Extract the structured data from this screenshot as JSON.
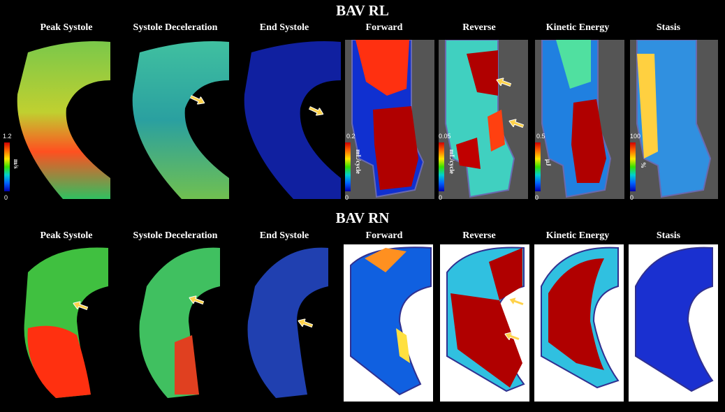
{
  "rows": [
    {
      "title": "BAV RL",
      "panels": [
        {
          "label": "Peak Systole",
          "colorbar": {
            "max": "1.2",
            "min": "0",
            "unit": "m/s"
          }
        },
        {
          "label": "Systole Deceleration"
        },
        {
          "label": "End Systole"
        },
        {
          "label": "Forward",
          "colorbar": {
            "max": "0.2",
            "min": "0",
            "unit": "mL/cycle"
          }
        },
        {
          "label": "Reverse",
          "colorbar": {
            "max": "0.05",
            "min": "0",
            "unit": "mL/cycle"
          }
        },
        {
          "label": "Kinetic Energy",
          "colorbar": {
            "max": "0.5",
            "min": "0",
            "unit": "μJ"
          }
        },
        {
          "label": "Stasis",
          "colorbar": {
            "max": "100",
            "min": "0",
            "unit": "%"
          }
        }
      ]
    },
    {
      "title": "BAV RN",
      "panels": [
        {
          "label": "Peak Systole"
        },
        {
          "label": "Systole Deceleration"
        },
        {
          "label": "End Systole"
        },
        {
          "label": "Forward"
        },
        {
          "label": "Reverse"
        },
        {
          "label": "Kinetic Energy"
        },
        {
          "label": "Stasis"
        }
      ]
    }
  ],
  "colors": {
    "arrow": "#ffd24a",
    "outline": "#5a5aa0",
    "background_dark": "#000000",
    "background_light": "#ffffff"
  }
}
